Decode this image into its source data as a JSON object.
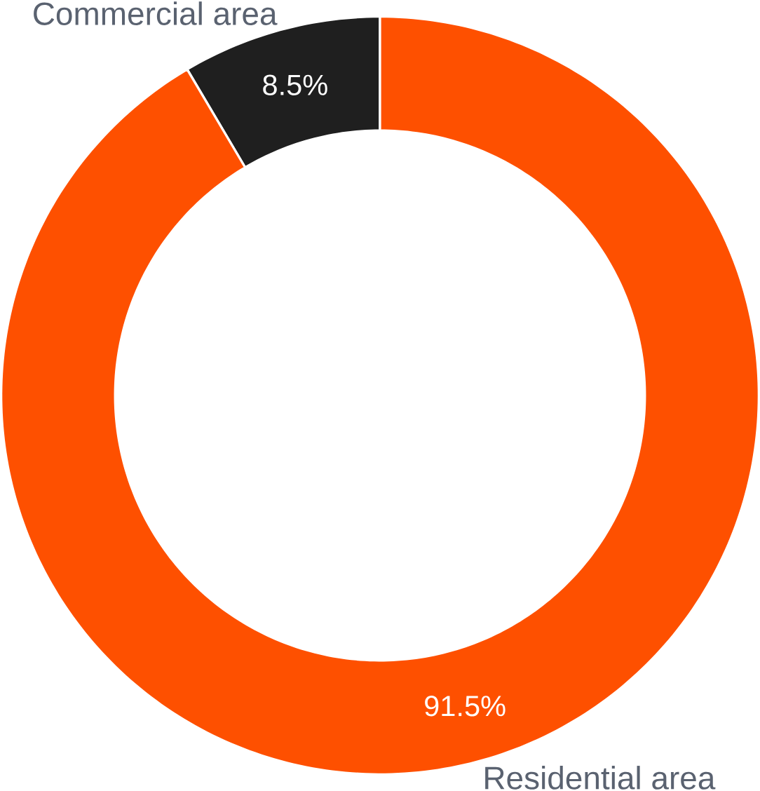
{
  "chart_data": {
    "type": "donut",
    "categories": [
      "Commercial area",
      "Residential area"
    ],
    "values": [
      8.5,
      91.5
    ],
    "value_labels": [
      "8.5%",
      "91.5%"
    ],
    "colors": [
      "#1f1f1f",
      "#fe5000"
    ]
  }
}
